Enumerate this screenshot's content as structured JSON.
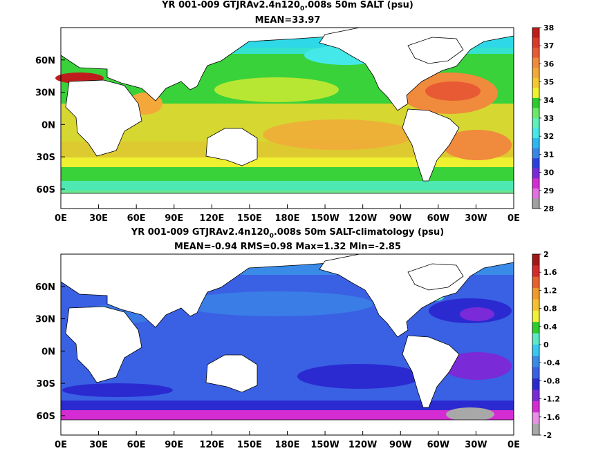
{
  "chart_data": [
    {
      "type": "heatmap",
      "title_main": "YR 001-009 GTJRAv2.4n120",
      "title_sub": "0",
      "title_rest": ".008s 50m SALT (psu)",
      "stats": "MEAN=33.97",
      "x_ticks": [
        "0E",
        "30E",
        "60E",
        "90E",
        "120E",
        "150E",
        "180E",
        "150W",
        "120W",
        "90W",
        "60W",
        "30W",
        "0E"
      ],
      "y_ticks": [
        "60N",
        "30N",
        "0N",
        "30S",
        "60S"
      ],
      "colorbar_labels": [
        "38",
        "37",
        "36",
        "35",
        "34",
        "33",
        "32",
        "31",
        "30",
        "29",
        "28"
      ],
      "colorbar_colors": [
        "#bf1d1d",
        "#d93a2a",
        "#e85a34",
        "#f08a3c",
        "#f4a83a",
        "#f4c830",
        "#eef230",
        "#2ccc2c",
        "#6be86b",
        "#5ef0b8",
        "#45e8e8",
        "#2ab8f0",
        "#3a86e8",
        "#2a40e0",
        "#7a2ad8",
        "#d22cd2",
        "#e070e0",
        "#a0a0a0"
      ],
      "xlim": [
        0,
        360
      ],
      "ylim": [
        -78,
        90
      ]
    },
    {
      "type": "heatmap",
      "title_main": "YR 001-009 GTJRAv2.4n120",
      "title_sub": "0",
      "title_rest": ".008s 50m SALT-climatology (psu)",
      "stats": "MEAN=-0.94   RMS=0.98   Max=1.32   Min=-2.85",
      "x_ticks": [
        "0E",
        "30E",
        "60E",
        "90E",
        "120E",
        "150E",
        "180E",
        "150W",
        "120W",
        "90W",
        "60W",
        "30W",
        "0E"
      ],
      "y_ticks": [
        "60N",
        "30N",
        "0N",
        "30S",
        "60S"
      ],
      "colorbar_labels": [
        "2",
        "1.6",
        "1.2",
        "0.8",
        "0.4",
        "0",
        "-0.4",
        "-0.8",
        "-1.2",
        "-1.6",
        "-2"
      ],
      "colorbar_colors": [
        "#a31717",
        "#d52a2a",
        "#e8602e",
        "#f09a2a",
        "#f4c030",
        "#eef03a",
        "#2ccc2c",
        "#5ee8c8",
        "#39c8f0",
        "#3a8ae8",
        "#3a60e4",
        "#2a2ad0",
        "#7a2ad6",
        "#d42cd2",
        "#e890e8",
        "#a8a8a8"
      ],
      "xlim": [
        0,
        360
      ],
      "ylim": [
        -78,
        90
      ]
    }
  ]
}
